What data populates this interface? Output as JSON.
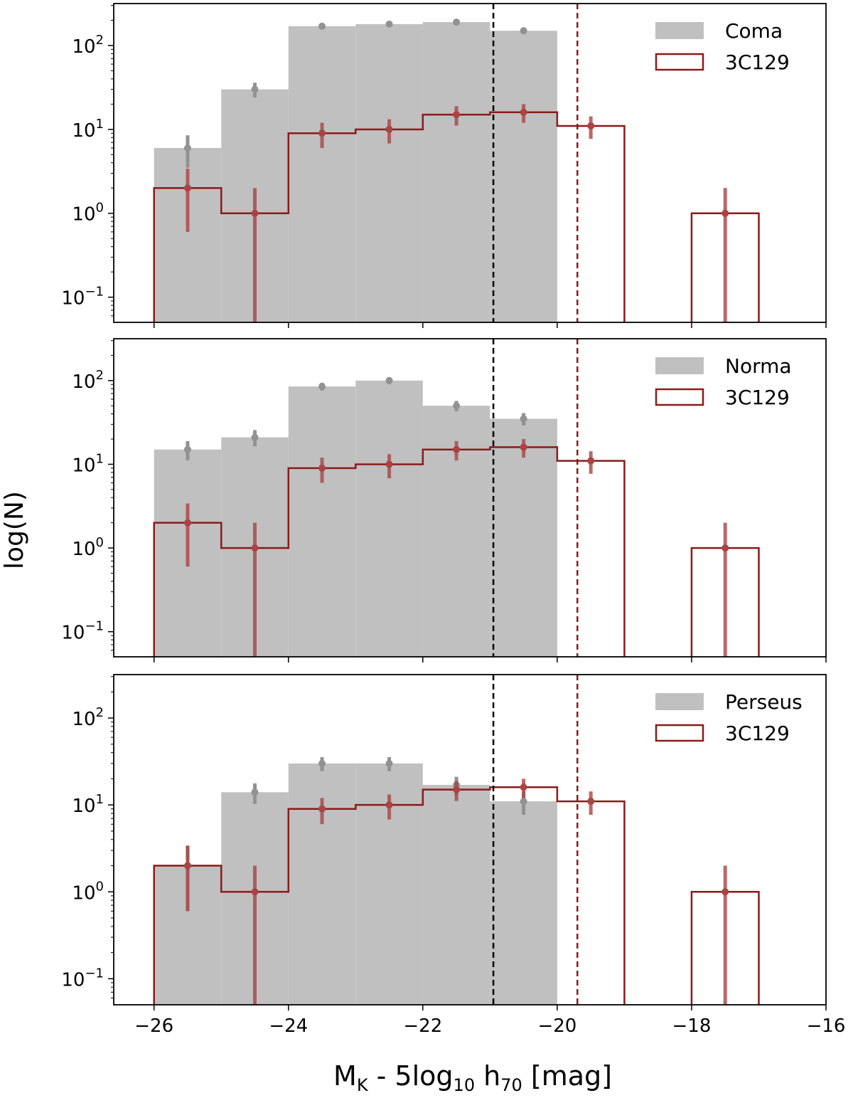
{
  "chart_data": {
    "type": "histogram",
    "ylabel": "log(N)",
    "xlabel_parts": {
      "m": "M",
      "k": "K",
      "mid": " - 5log",
      "ten": "10",
      "h": " h",
      "seventy": "70",
      "unit": " [mag]"
    },
    "xlim": [
      -26.6,
      -16
    ],
    "ylim_log10": [
      -1.3,
      2.5
    ],
    "xticks": [
      -26,
      -24,
      -22,
      -20,
      -18,
      -16
    ],
    "xtick_labels": [
      "−26",
      "−24",
      "−22",
      "−20",
      "−18",
      "−16"
    ],
    "yticks_exp": [
      -1,
      0,
      1,
      2
    ],
    "ytick_base": "10",
    "ytick_exp_labels": [
      "−1",
      "0",
      "1",
      "2"
    ],
    "colors": {
      "cluster": "#c0c0c0",
      "cluster_err": "#929292",
      "ref": "#8b1a1a",
      "ref_err": "#a84444",
      "vline_cluster": "#000000",
      "vline_ref": "#8b1a1a"
    },
    "reference": {
      "name": "3C129",
      "bin_edges": [
        -26,
        -25,
        -24,
        -23,
        -22,
        -21,
        -20,
        -19
      ],
      "counts": [
        2,
        1,
        9,
        10,
        15,
        16,
        11
      ],
      "extra_bin": {
        "edges": [
          -18,
          -17
        ],
        "count": 1
      },
      "points": [
        {
          "x": -25.5,
          "y": 2,
          "lo": 0.6,
          "hi": 3.4
        },
        {
          "x": -24.5,
          "y": 1,
          "lo": 0.0,
          "hi": 2.0
        },
        {
          "x": -23.5,
          "y": 9,
          "lo": 6.0,
          "hi": 12.0
        },
        {
          "x": -22.5,
          "y": 10,
          "lo": 6.8,
          "hi": 13.2
        },
        {
          "x": -21.5,
          "y": 15,
          "lo": 11.1,
          "hi": 18.9
        },
        {
          "x": -20.5,
          "y": 16,
          "lo": 12.0,
          "hi": 20.0
        },
        {
          "x": -19.5,
          "y": 11,
          "lo": 7.7,
          "hi": 14.3
        },
        {
          "x": -17.5,
          "y": 1,
          "lo": 0.0,
          "hi": 2.0
        }
      ],
      "vline_x": -19.7
    },
    "panels": [
      {
        "name": "Coma",
        "bin_edges": [
          -26,
          -25,
          -24,
          -23,
          -22,
          -21,
          -20
        ],
        "counts": [
          6,
          30,
          170,
          180,
          190,
          150
        ],
        "points": [
          {
            "x": -25.5,
            "y": 6,
            "lo": 3.5,
            "hi": 8.5
          },
          {
            "x": -24.5,
            "y": 30,
            "lo": 24,
            "hi": 36
          },
          {
            "x": -23.5,
            "y": 170,
            "lo": 157,
            "hi": 183
          },
          {
            "x": -22.5,
            "y": 180,
            "lo": 167,
            "hi": 193
          },
          {
            "x": -21.5,
            "y": 190,
            "lo": 176,
            "hi": 204
          },
          {
            "x": -20.5,
            "y": 150,
            "lo": 138,
            "hi": 162
          }
        ],
        "vline_x": -20.95
      },
      {
        "name": "Norma",
        "bin_edges": [
          -26,
          -25,
          -24,
          -23,
          -22,
          -21,
          -20
        ],
        "counts": [
          15,
          21,
          85,
          100,
          50,
          35
        ],
        "points": [
          {
            "x": -25.5,
            "y": 15,
            "lo": 11.1,
            "hi": 18.9
          },
          {
            "x": -24.5,
            "y": 21,
            "lo": 16.4,
            "hi": 25.6
          },
          {
            "x": -23.5,
            "y": 85,
            "lo": 75.8,
            "hi": 94.2
          },
          {
            "x": -22.5,
            "y": 100,
            "lo": 90,
            "hi": 110
          },
          {
            "x": -21.5,
            "y": 50,
            "lo": 42.9,
            "hi": 57.1
          },
          {
            "x": -20.5,
            "y": 35,
            "lo": 29.1,
            "hi": 40.9
          }
        ],
        "vline_x": -20.95
      },
      {
        "name": "Perseus",
        "bin_edges": [
          -26,
          -25,
          -24,
          -23,
          -22,
          -21,
          -20
        ],
        "counts": [
          2,
          14,
          30,
          30,
          17,
          11
        ],
        "points": [
          {
            "x": -25.5,
            "y": 2,
            "lo": 0.6,
            "hi": 3.4
          },
          {
            "x": -24.5,
            "y": 14,
            "lo": 10.3,
            "hi": 17.7
          },
          {
            "x": -23.5,
            "y": 30,
            "lo": 24.5,
            "hi": 35.5
          },
          {
            "x": -22.5,
            "y": 30,
            "lo": 24.5,
            "hi": 35.5
          },
          {
            "x": -21.5,
            "y": 17,
            "lo": 12.9,
            "hi": 21.1
          },
          {
            "x": -20.5,
            "y": 11,
            "lo": 7.7,
            "hi": 14.3
          }
        ],
        "vline_x": -20.95
      }
    ]
  }
}
